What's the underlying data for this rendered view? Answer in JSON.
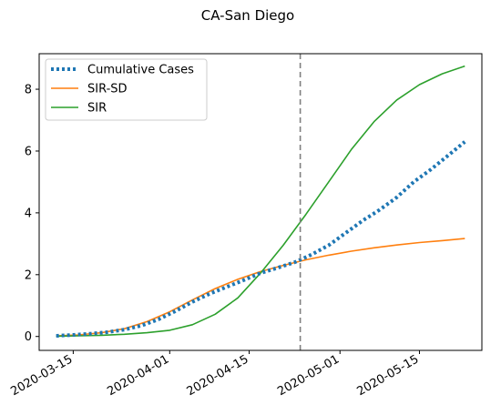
{
  "chart_data": {
    "type": "line",
    "title": "CA-San Diego",
    "xlabel": "",
    "ylabel": "",
    "xlim": [
      "2020-03-09",
      "2020-05-26"
    ],
    "ylim": [
      -0.45,
      9.15
    ],
    "x_ticks": [
      "2020-03-15",
      "2020-04-01",
      "2020-04-15",
      "2020-05-01",
      "2020-05-15"
    ],
    "y_ticks": [
      0,
      2,
      4,
      6,
      8
    ],
    "grid": false,
    "legend_position": "top-left",
    "vline": {
      "x": "2020-04-24",
      "color": "#7f7f7f",
      "style": "dashed"
    },
    "series": [
      {
        "name": "Cumulative Cases",
        "color": "#1f77b4",
        "style": "dotted",
        "points": [
          [
            "2020-03-12",
            0.02
          ],
          [
            "2020-03-15",
            0.05
          ],
          [
            "2020-03-18",
            0.09
          ],
          [
            "2020-03-21",
            0.14
          ],
          [
            "2020-03-24",
            0.22
          ],
          [
            "2020-03-27",
            0.35
          ],
          [
            "2020-03-30",
            0.55
          ],
          [
            "2020-04-02",
            0.82
          ],
          [
            "2020-04-05",
            1.12
          ],
          [
            "2020-04-08",
            1.38
          ],
          [
            "2020-04-11",
            1.6
          ],
          [
            "2020-04-14",
            1.82
          ],
          [
            "2020-04-17",
            2.05
          ],
          [
            "2020-04-20",
            2.22
          ],
          [
            "2020-04-23",
            2.4
          ],
          [
            "2020-04-26",
            2.65
          ],
          [
            "2020-04-29",
            2.95
          ],
          [
            "2020-05-02",
            3.35
          ],
          [
            "2020-05-05",
            3.75
          ],
          [
            "2020-05-08",
            4.1
          ],
          [
            "2020-05-11",
            4.5
          ],
          [
            "2020-05-14",
            5.0
          ],
          [
            "2020-05-17",
            5.4
          ],
          [
            "2020-05-20",
            5.85
          ],
          [
            "2020-05-23",
            6.3
          ]
        ]
      },
      {
        "name": "SIR-SD",
        "color": "#ff7f0e",
        "style": "solid",
        "points": [
          [
            "2020-03-12",
            0.02
          ],
          [
            "2020-03-16",
            0.05
          ],
          [
            "2020-03-20",
            0.12
          ],
          [
            "2020-03-24",
            0.25
          ],
          [
            "2020-03-28",
            0.48
          ],
          [
            "2020-04-01",
            0.8
          ],
          [
            "2020-04-05",
            1.18
          ],
          [
            "2020-04-09",
            1.55
          ],
          [
            "2020-04-13",
            1.85
          ],
          [
            "2020-04-17",
            2.1
          ],
          [
            "2020-04-21",
            2.3
          ],
          [
            "2020-04-25",
            2.48
          ],
          [
            "2020-04-29",
            2.63
          ],
          [
            "2020-05-03",
            2.76
          ],
          [
            "2020-05-07",
            2.87
          ],
          [
            "2020-05-11",
            2.96
          ],
          [
            "2020-05-15",
            3.04
          ],
          [
            "2020-05-19",
            3.1
          ],
          [
            "2020-05-23",
            3.17
          ]
        ]
      },
      {
        "name": "SIR",
        "color": "#2ca02c",
        "style": "solid",
        "points": [
          [
            "2020-03-12",
            0.01
          ],
          [
            "2020-03-16",
            0.02
          ],
          [
            "2020-03-20",
            0.04
          ],
          [
            "2020-03-24",
            0.07
          ],
          [
            "2020-03-28",
            0.12
          ],
          [
            "2020-04-01",
            0.2
          ],
          [
            "2020-04-05",
            0.38
          ],
          [
            "2020-04-09",
            0.72
          ],
          [
            "2020-04-13",
            1.25
          ],
          [
            "2020-04-17",
            2.05
          ],
          [
            "2020-04-21",
            2.95
          ],
          [
            "2020-04-25",
            3.95
          ],
          [
            "2020-04-29",
            5.0
          ],
          [
            "2020-05-03",
            6.05
          ],
          [
            "2020-05-07",
            6.95
          ],
          [
            "2020-05-11",
            7.65
          ],
          [
            "2020-05-15",
            8.15
          ],
          [
            "2020-05-19",
            8.5
          ],
          [
            "2020-05-23",
            8.75
          ]
        ]
      }
    ]
  }
}
